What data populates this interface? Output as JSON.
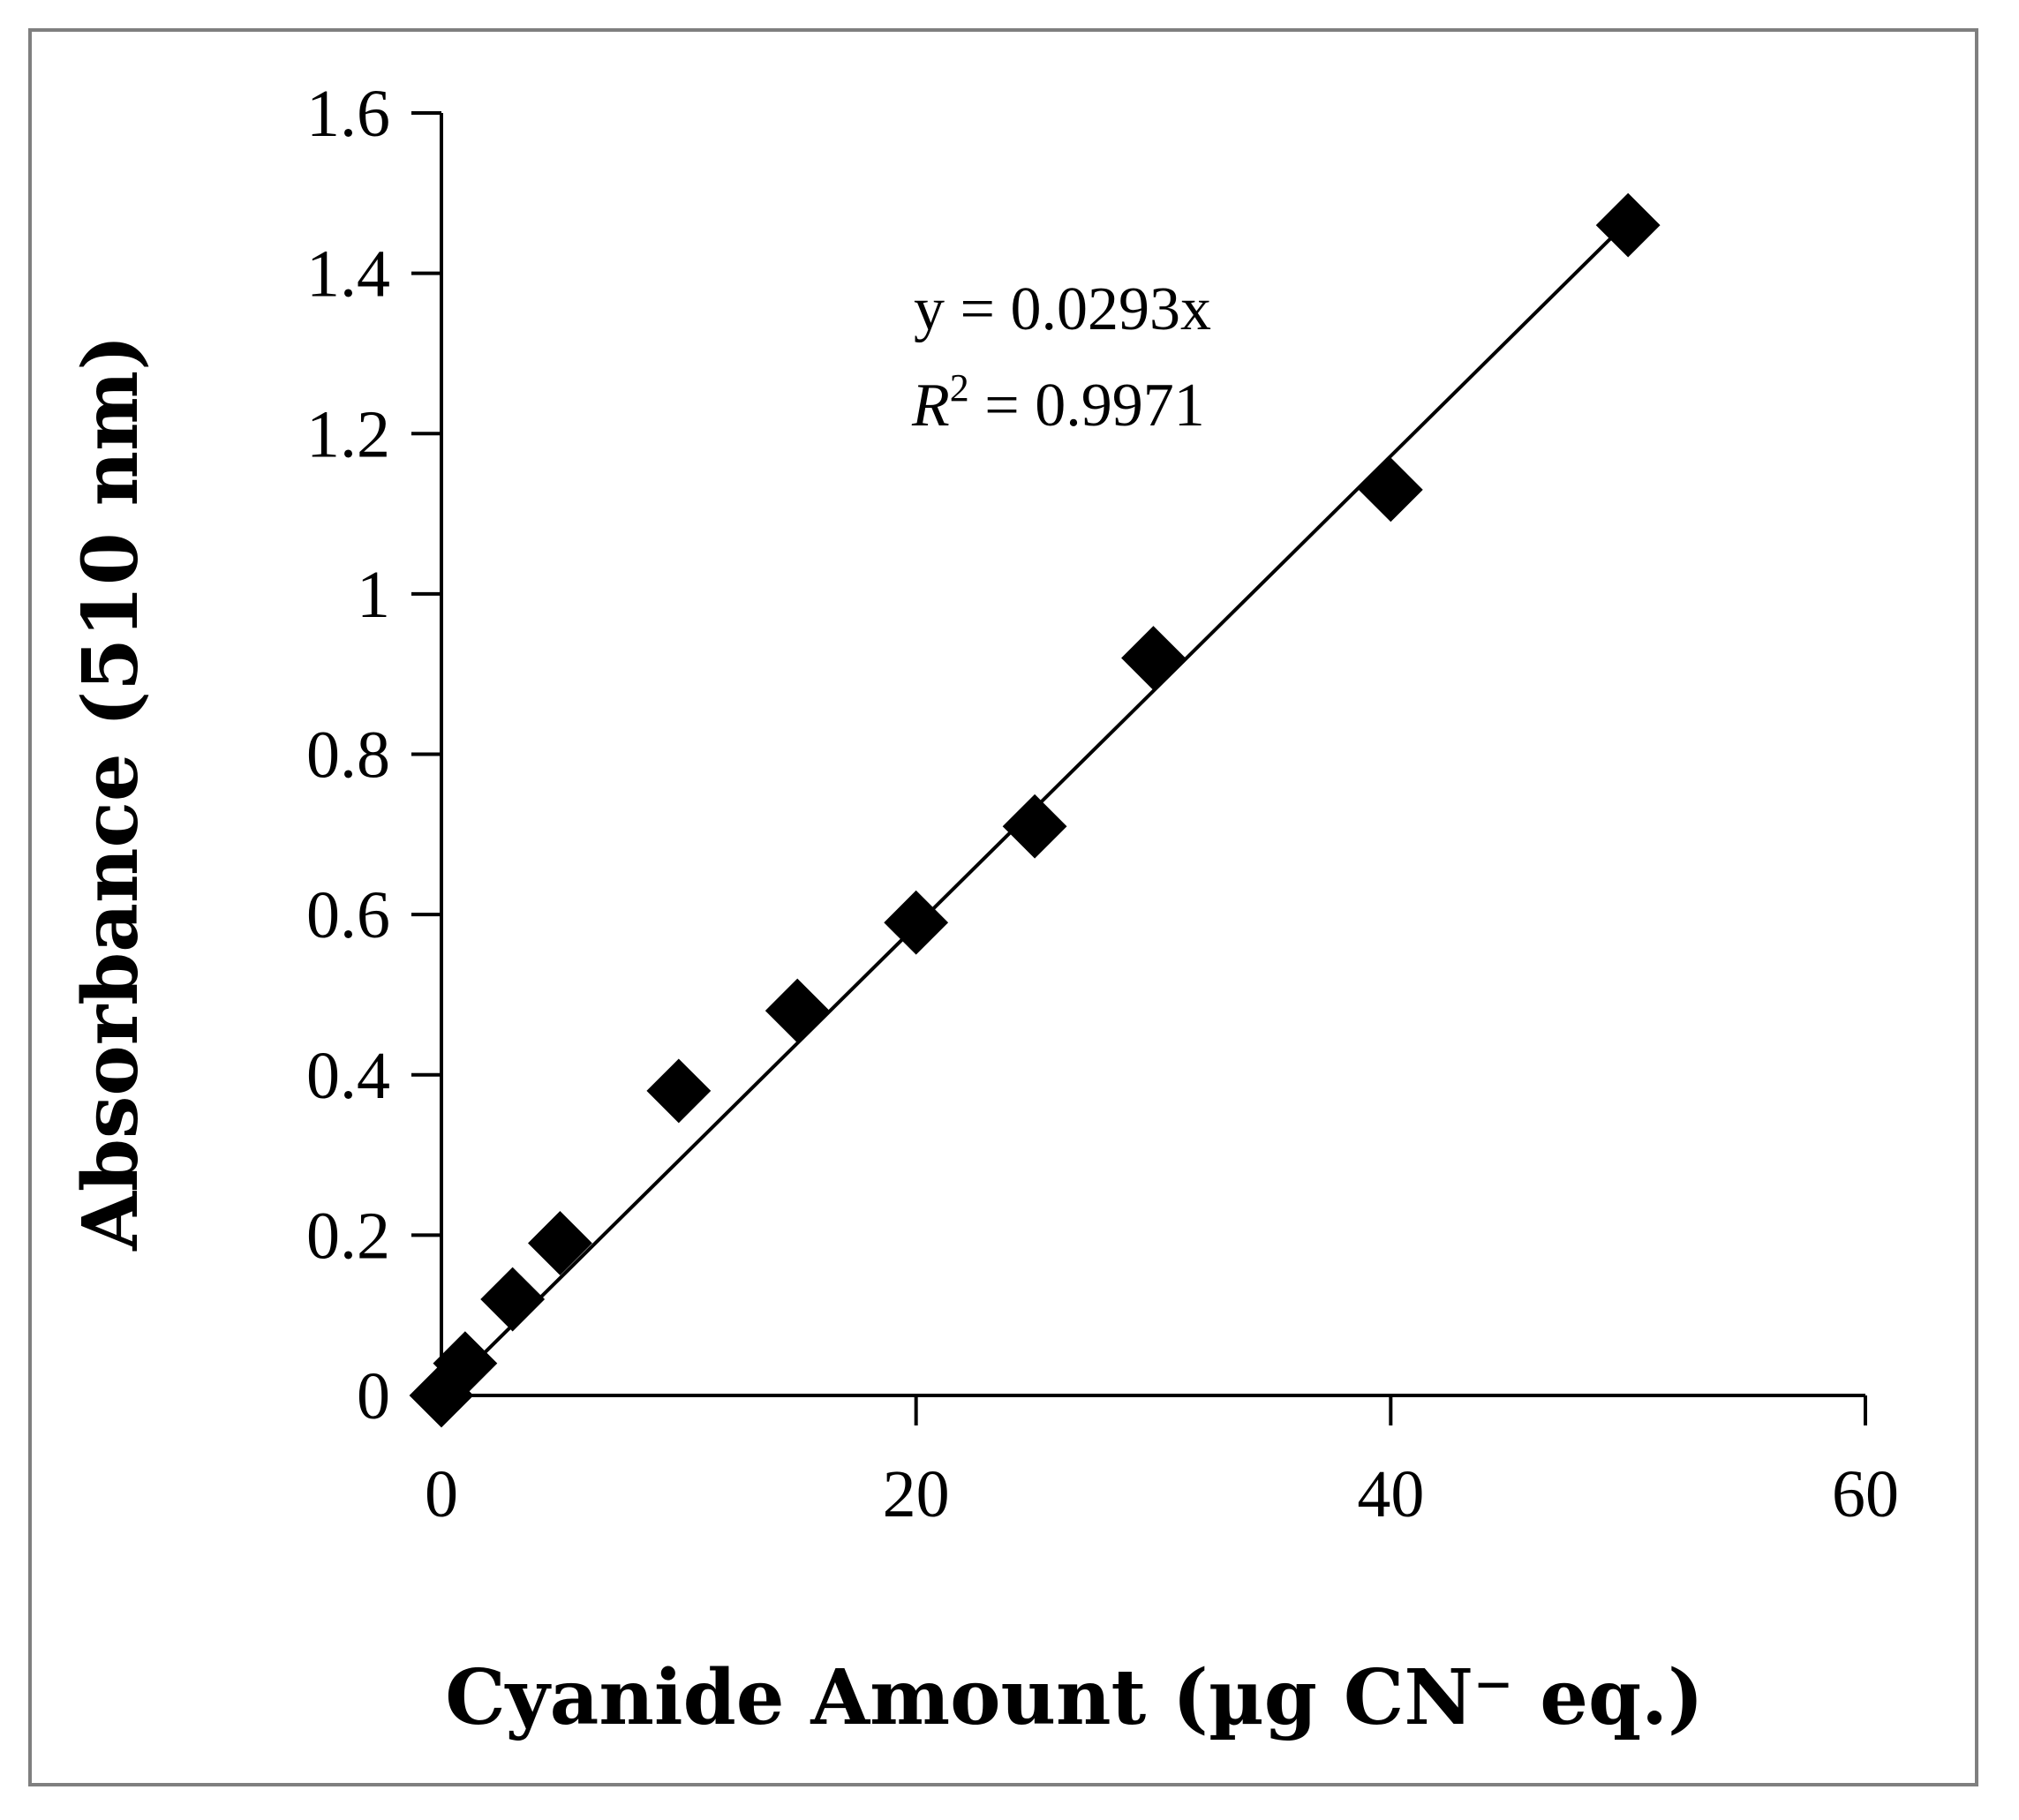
{
  "chart_data": {
    "type": "scatter",
    "xlabel": "Cyanide Amount (µg CN⁻ eq.)",
    "ylabel": "Absorbance (510 nm)",
    "xlim": [
      0,
      60
    ],
    "ylim": [
      0,
      1.6
    ],
    "x_ticks": [
      "0",
      "20",
      "40",
      "60"
    ],
    "y_ticks": [
      "0",
      "0.2",
      "0.4",
      "0.6",
      "0.8",
      "1",
      "1.2",
      "1.4",
      "1.6"
    ],
    "grid": false,
    "legend": "none",
    "marker": "diamond",
    "marker_color": "#000000",
    "series": [
      {
        "x": [
          0,
          1,
          3,
          5,
          10,
          15,
          20,
          25,
          30,
          40,
          50
        ],
        "y": [
          0.0,
          0.04,
          0.12,
          0.19,
          0.38,
          0.48,
          0.59,
          0.71,
          0.92,
          1.13,
          1.46
        ]
      }
    ],
    "trendline": {
      "type": "linear",
      "slope": 0.0293,
      "intercept": 0,
      "x_range": [
        0,
        50
      ],
      "color": "#000000"
    },
    "annotations": {
      "equation": "y = 0.0293x",
      "r2_symbol": "R",
      "r2_exponent": "2",
      "r2_value": " = 0.9971"
    }
  }
}
